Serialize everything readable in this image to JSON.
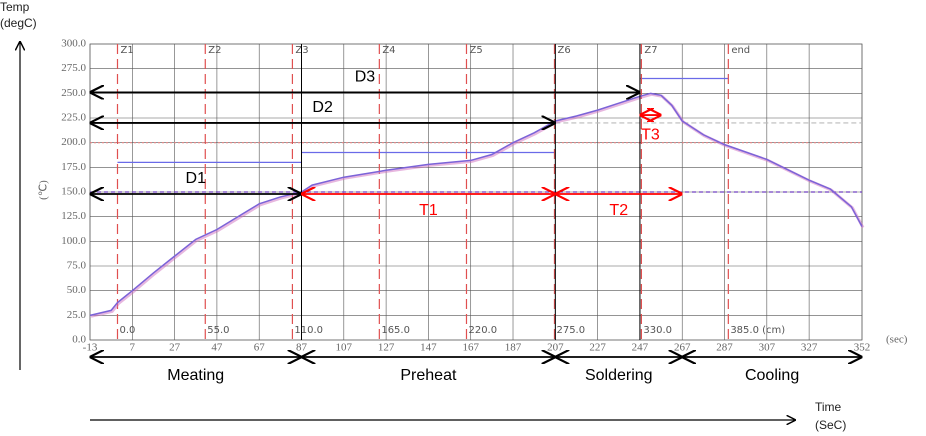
{
  "chart_data": {
    "type": "line",
    "y_label": [
      "Temp",
      "(degC)"
    ],
    "x_label": [
      "Time",
      "(SeC)"
    ],
    "y_unit": "(℃)",
    "x_unit": "(sec)",
    "color": "#7b63d8",
    "x": [
      -13,
      -3,
      0,
      7,
      17,
      27,
      37,
      47,
      57,
      67,
      77,
      87,
      92,
      107,
      127,
      147,
      167,
      177,
      187,
      197,
      207,
      217,
      227,
      237,
      247,
      252,
      257,
      262,
      267,
      277,
      287,
      307,
      327,
      337,
      347,
      352
    ],
    "values": [
      25,
      30,
      38,
      50,
      68,
      85,
      102,
      112,
      125,
      138,
      145,
      150,
      157,
      165,
      172,
      178,
      182,
      188,
      200,
      210,
      222,
      227,
      233,
      240,
      247,
      250,
      248,
      238,
      222,
      208,
      198,
      183,
      162,
      153,
      135,
      115
    ],
    "xlim": [
      -13,
      352
    ],
    "ylim": [
      0,
      300
    ],
    "xticks": [
      -13,
      7,
      27,
      47,
      67,
      87,
      107,
      127,
      147,
      167,
      187,
      207,
      227,
      247,
      267,
      287,
      307,
      327,
      352
    ],
    "yticks": [
      {
        "value": 0,
        "label": "0.0"
      },
      {
        "value": 25,
        "label": "25.0"
      },
      {
        "value": 50,
        "label": "50.0"
      },
      {
        "value": 75,
        "label": "75.0"
      },
      {
        "value": 100,
        "label": "100.0"
      },
      {
        "value": 125,
        "label": "125.0"
      },
      {
        "value": 150,
        "label": "150.0"
      },
      {
        "value": 175,
        "label": "175.0"
      },
      {
        "value": 200,
        "label": "200.0"
      },
      {
        "value": 225,
        "label": "225.0"
      },
      {
        "value": 250,
        "label": "250.0"
      },
      {
        "value": 275,
        "label": "275.0"
      },
      {
        "value": 300,
        "label": "300.0"
      }
    ],
    "grid": true,
    "zones": [
      {
        "label": "Z1",
        "x": 0,
        "distance": "0.0"
      },
      {
        "label": "Z2",
        "x": 41.5,
        "distance": "55.0"
      },
      {
        "label": "Z3",
        "x": 82.7,
        "distance": "110.0"
      },
      {
        "label": "Z4",
        "x": 123.8,
        "distance": "165.0"
      },
      {
        "label": "Z5",
        "x": 165,
        "distance": "220.0"
      },
      {
        "label": "Z6",
        "x": 206.6,
        "distance": "275.0"
      },
      {
        "label": "Z7",
        "x": 247.7,
        "distance": "330.0"
      },
      {
        "label": "end",
        "x": 288.8,
        "distance": "385.0 (cm)"
      }
    ],
    "reference_lines": [
      {
        "y": 200,
        "x": [
          -13,
          352
        ],
        "color": "#e08080",
        "dash": "2,2"
      },
      {
        "y": 150,
        "x": [
          -13,
          352
        ],
        "color": "#7040c0",
        "dash": "4,3"
      },
      {
        "y": 220,
        "x": [
          207,
          352
        ],
        "color": "#bbbbbb",
        "dash": "5,3"
      },
      {
        "y": 180,
        "x": [
          0,
          87
        ],
        "color": "#6a6ae8",
        "dash": ""
      },
      {
        "y": 190,
        "x": [
          87,
          207
        ],
        "color": "#6a6ae8",
        "dash": ""
      },
      {
        "y": 265,
        "x": [
          247,
          288.8
        ],
        "color": "#6a6ae8",
        "dash": ""
      }
    ],
    "spans": [
      {
        "label": "D1",
        "x": [
          -13,
          87
        ],
        "y": 148,
        "color": "#000000"
      },
      {
        "label": "D2",
        "x": [
          -13,
          207
        ],
        "y": 220,
        "color": "#000000"
      },
      {
        "label": "D3",
        "x": [
          -13,
          247
        ],
        "y": 251,
        "color": "#000000"
      },
      {
        "label": "T1",
        "x": [
          87,
          207
        ],
        "y": 148,
        "color": "#ff0000"
      },
      {
        "label": "T2",
        "x": [
          207,
          267
        ],
        "y": 148,
        "color": "#ff0000"
      },
      {
        "label": "T3",
        "x": [
          247,
          257
        ],
        "y": 228,
        "color": "#ff0000"
      }
    ],
    "phases": [
      {
        "label": "Meating",
        "x": [
          -13,
          87
        ]
      },
      {
        "label": "Preheat",
        "x": [
          87,
          207
        ]
      },
      {
        "label": "Soldering",
        "x": [
          207,
          267
        ]
      },
      {
        "label": "Cooling",
        "x": [
          267,
          352
        ]
      }
    ]
  }
}
